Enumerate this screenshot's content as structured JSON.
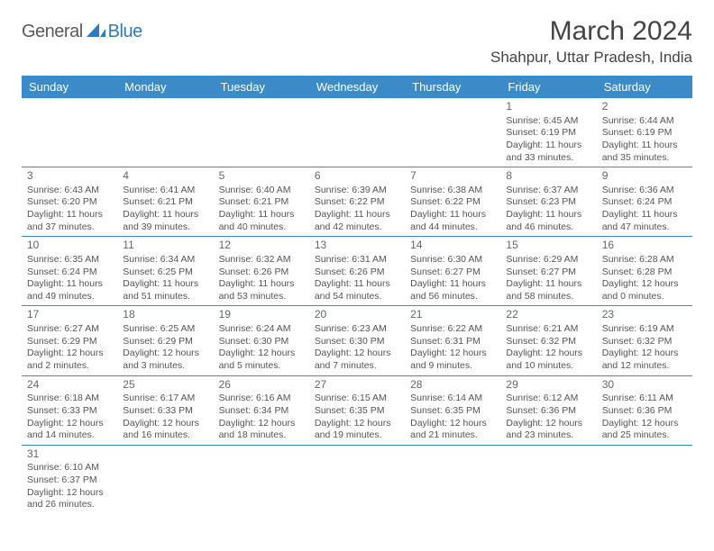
{
  "logo": {
    "part1": "General",
    "part2": "Blue"
  },
  "title": "March 2024",
  "location": "Shahpur, Uttar Pradesh, India",
  "colors": {
    "header_bg": "#3b8bc9",
    "header_text": "#ffffff",
    "cell_border": "#3b8bc9",
    "body_text": "#555555",
    "title_text": "#444444",
    "logo_gray": "#5a5a5a",
    "logo_blue": "#2b7bbd"
  },
  "weekdays": [
    "Sunday",
    "Monday",
    "Tuesday",
    "Wednesday",
    "Thursday",
    "Friday",
    "Saturday"
  ],
  "layout": {
    "first_weekday_index": 5,
    "days_in_month": 31
  },
  "days": {
    "1": {
      "sunrise": "6:45 AM",
      "sunset": "6:19 PM",
      "daylight": "11 hours and 33 minutes."
    },
    "2": {
      "sunrise": "6:44 AM",
      "sunset": "6:19 PM",
      "daylight": "11 hours and 35 minutes."
    },
    "3": {
      "sunrise": "6:43 AM",
      "sunset": "6:20 PM",
      "daylight": "11 hours and 37 minutes."
    },
    "4": {
      "sunrise": "6:41 AM",
      "sunset": "6:21 PM",
      "daylight": "11 hours and 39 minutes."
    },
    "5": {
      "sunrise": "6:40 AM",
      "sunset": "6:21 PM",
      "daylight": "11 hours and 40 minutes."
    },
    "6": {
      "sunrise": "6:39 AM",
      "sunset": "6:22 PM",
      "daylight": "11 hours and 42 minutes."
    },
    "7": {
      "sunrise": "6:38 AM",
      "sunset": "6:22 PM",
      "daylight": "11 hours and 44 minutes."
    },
    "8": {
      "sunrise": "6:37 AM",
      "sunset": "6:23 PM",
      "daylight": "11 hours and 46 minutes."
    },
    "9": {
      "sunrise": "6:36 AM",
      "sunset": "6:24 PM",
      "daylight": "11 hours and 47 minutes."
    },
    "10": {
      "sunrise": "6:35 AM",
      "sunset": "6:24 PM",
      "daylight": "11 hours and 49 minutes."
    },
    "11": {
      "sunrise": "6:34 AM",
      "sunset": "6:25 PM",
      "daylight": "11 hours and 51 minutes."
    },
    "12": {
      "sunrise": "6:32 AM",
      "sunset": "6:26 PM",
      "daylight": "11 hours and 53 minutes."
    },
    "13": {
      "sunrise": "6:31 AM",
      "sunset": "6:26 PM",
      "daylight": "11 hours and 54 minutes."
    },
    "14": {
      "sunrise": "6:30 AM",
      "sunset": "6:27 PM",
      "daylight": "11 hours and 56 minutes."
    },
    "15": {
      "sunrise": "6:29 AM",
      "sunset": "6:27 PM",
      "daylight": "11 hours and 58 minutes."
    },
    "16": {
      "sunrise": "6:28 AM",
      "sunset": "6:28 PM",
      "daylight": "12 hours and 0 minutes."
    },
    "17": {
      "sunrise": "6:27 AM",
      "sunset": "6:29 PM",
      "daylight": "12 hours and 2 minutes."
    },
    "18": {
      "sunrise": "6:25 AM",
      "sunset": "6:29 PM",
      "daylight": "12 hours and 3 minutes."
    },
    "19": {
      "sunrise": "6:24 AM",
      "sunset": "6:30 PM",
      "daylight": "12 hours and 5 minutes."
    },
    "20": {
      "sunrise": "6:23 AM",
      "sunset": "6:30 PM",
      "daylight": "12 hours and 7 minutes."
    },
    "21": {
      "sunrise": "6:22 AM",
      "sunset": "6:31 PM",
      "daylight": "12 hours and 9 minutes."
    },
    "22": {
      "sunrise": "6:21 AM",
      "sunset": "6:32 PM",
      "daylight": "12 hours and 10 minutes."
    },
    "23": {
      "sunrise": "6:19 AM",
      "sunset": "6:32 PM",
      "daylight": "12 hours and 12 minutes."
    },
    "24": {
      "sunrise": "6:18 AM",
      "sunset": "6:33 PM",
      "daylight": "12 hours and 14 minutes."
    },
    "25": {
      "sunrise": "6:17 AM",
      "sunset": "6:33 PM",
      "daylight": "12 hours and 16 minutes."
    },
    "26": {
      "sunrise": "6:16 AM",
      "sunset": "6:34 PM",
      "daylight": "12 hours and 18 minutes."
    },
    "27": {
      "sunrise": "6:15 AM",
      "sunset": "6:35 PM",
      "daylight": "12 hours and 19 minutes."
    },
    "28": {
      "sunrise": "6:14 AM",
      "sunset": "6:35 PM",
      "daylight": "12 hours and 21 minutes."
    },
    "29": {
      "sunrise": "6:12 AM",
      "sunset": "6:36 PM",
      "daylight": "12 hours and 23 minutes."
    },
    "30": {
      "sunrise": "6:11 AM",
      "sunset": "6:36 PM",
      "daylight": "12 hours and 25 minutes."
    },
    "31": {
      "sunrise": "6:10 AM",
      "sunset": "6:37 PM",
      "daylight": "12 hours and 26 minutes."
    }
  },
  "labels": {
    "sunrise": "Sunrise: ",
    "sunset": "Sunset: ",
    "daylight": "Daylight: "
  }
}
